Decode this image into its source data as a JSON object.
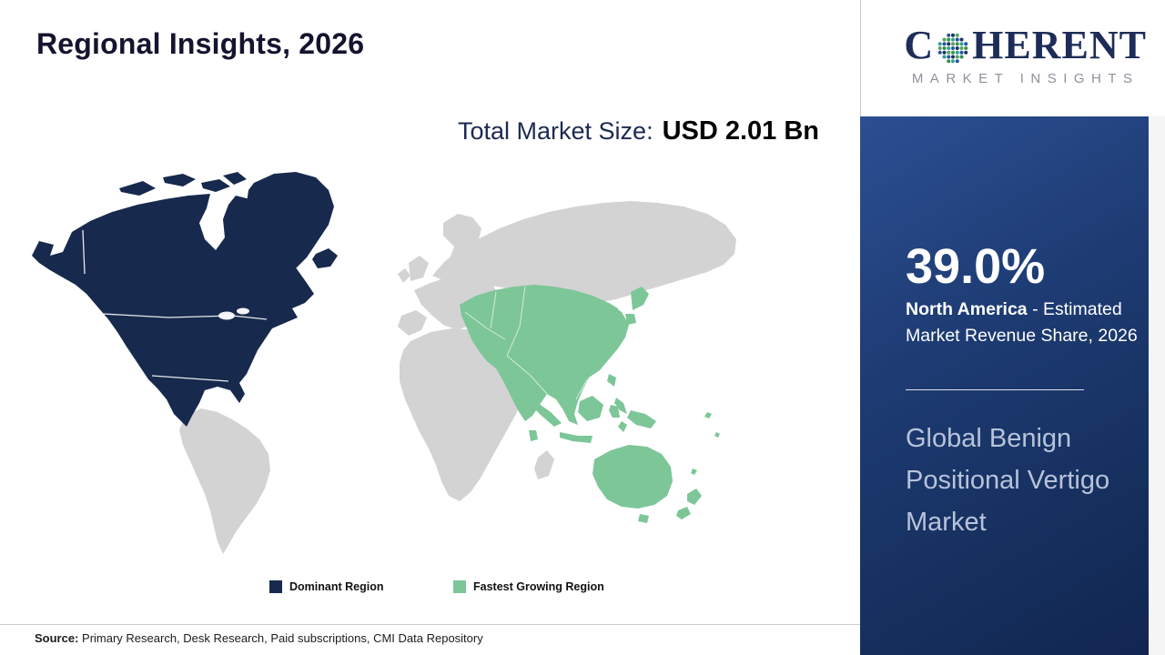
{
  "page": {
    "title": "Regional Insights, 2026",
    "market_size_label": "Total Market Size:",
    "market_size_value": "USD 2.01 Bn"
  },
  "logo": {
    "brand_prefix": "C",
    "brand_suffix": "HERENT",
    "brand_subtitle": "MARKET INSIGHTS"
  },
  "legend": [
    {
      "label": "Dominant Region",
      "color": "#17294d"
    },
    {
      "label": "Fastest Growing Region",
      "color": "#7dc698"
    }
  ],
  "sidebar": {
    "share_value": "39.0%",
    "share_region": "North America",
    "share_rest": " - Estimated Market Revenue Share, 2026",
    "market_name": "Global Benign Positional Vertigo Market"
  },
  "source": {
    "label": "Source:",
    "text": " Primary Research, Desk Research, Paid subscriptions, CMI Data Repository"
  },
  "colors": {
    "dominant_region": "#17294d",
    "fastest_growing_region": "#7dc698",
    "other_region": "#d3d3d3",
    "panel_background": "#1e3c74",
    "panel_accent_text": "#b7c3da",
    "logo_navy": "#1d2c58"
  },
  "chart_data": {
    "type": "map",
    "title": "Regional Insights, 2026",
    "total_market_size": "USD 2.01 Bn",
    "market": "Global Benign Positional Vertigo Market",
    "regions": [
      {
        "name": "North America",
        "classification": "Dominant Region",
        "estimated_market_revenue_share_2026_pct": 39.0,
        "color": "#17294d"
      },
      {
        "name": "Asia Pacific",
        "classification": "Fastest Growing Region",
        "color": "#7dc698"
      },
      {
        "name": "Rest of World",
        "classification": "Not highlighted",
        "color": "#d3d3d3"
      }
    ],
    "legend": [
      "Dominant Region",
      "Fastest Growing Region"
    ],
    "callout": {
      "value_pct": 39.0,
      "region": "North America",
      "description": "Estimated Market Revenue Share, 2026"
    }
  }
}
